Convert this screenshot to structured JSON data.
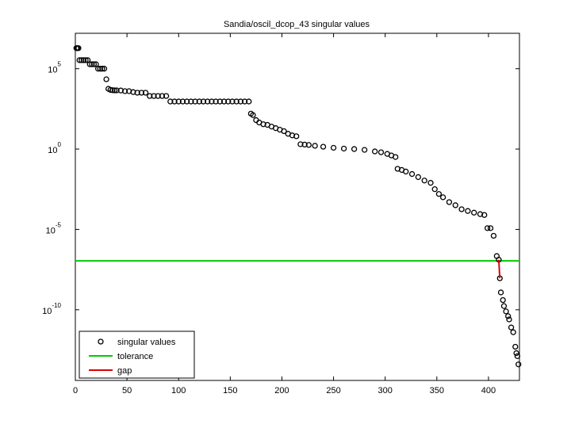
{
  "chart_data": {
    "type": "scatter",
    "title": "Sandia/oscil_dcop_43 singular values",
    "xlim": [
      0,
      430
    ],
    "xticks": [
      0,
      50,
      100,
      150,
      200,
      250,
      300,
      350,
      400
    ],
    "ylim": [
      4e-15,
      16000000.0
    ],
    "log_y": true,
    "yticks": [
      {
        "value": 1e-10,
        "label": "10^-10"
      },
      {
        "value": 1e-05,
        "label": "10^-5"
      },
      {
        "value": 1,
        "label": "10^0"
      },
      {
        "value": 100000.0,
        "label": "10^5"
      }
    ],
    "legend": "lower left",
    "series": [
      {
        "name": "singular values",
        "color": "#000000",
        "marker": "circle",
        "x": [
          1,
          2,
          3,
          4,
          6,
          8,
          10,
          12,
          14,
          16,
          18,
          20,
          22,
          24,
          26,
          28,
          30,
          32,
          34,
          36,
          38,
          40,
          44,
          48,
          52,
          56,
          60,
          64,
          68,
          72,
          76,
          80,
          84,
          88,
          92,
          96,
          100,
          104,
          108,
          112,
          116,
          120,
          124,
          128,
          132,
          136,
          140,
          144,
          148,
          152,
          156,
          160,
          164,
          168,
          170,
          172,
          175,
          178,
          182,
          186,
          190,
          194,
          198,
          202,
          206,
          210,
          214,
          218,
          222,
          226,
          232,
          240,
          250,
          260,
          270,
          280,
          290,
          296,
          302,
          306,
          310,
          312,
          316,
          320,
          326,
          332,
          338,
          344,
          348,
          352,
          356,
          362,
          368,
          374,
          380,
          386,
          392,
          396,
          399,
          402,
          405,
          408,
          410,
          411,
          412,
          414,
          415,
          417,
          419,
          420,
          422,
          424,
          426,
          427,
          428,
          429
        ],
        "values": [
          1900000.0,
          1900000.0,
          1900000.0,
          340000.0,
          340000.0,
          340000.0,
          340000.0,
          340000.0,
          190000.0,
          190000.0,
          190000.0,
          190000.0,
          100000.0,
          100000.0,
          100000.0,
          100000.0,
          22000.0,
          5600.0,
          4800.0,
          4600.0,
          4500.0,
          4500.0,
          4400.0,
          4000.0,
          4000.0,
          3500.0,
          3200.0,
          3200.0,
          3200.0,
          2000.0,
          2000.0,
          2000.0,
          2000.0,
          2000.0,
          910,
          910,
          910,
          910,
          910,
          910,
          910,
          910,
          910,
          910,
          910,
          910,
          910,
          910,
          910,
          910,
          910,
          910,
          910,
          910,
          160,
          130,
          63,
          45,
          35,
          32,
          25,
          20,
          16,
          13,
          8.9,
          7.1,
          6.3,
          2,
          1.9,
          1.8,
          1.6,
          1.4,
          1.2,
          1.07,
          1,
          0.89,
          0.71,
          0.63,
          0.5,
          0.4,
          0.32,
          0.059,
          0.05,
          0.04,
          0.028,
          0.018,
          0.011,
          0.0079,
          0.0032,
          0.0016,
          0.001,
          0.0005,
          0.00032,
          0.00018,
          0.00014,
          0.00011,
          8.9e-05,
          7.9e-05,
          1.2e-05,
          1.2e-05,
          4e-06,
          2.2e-07,
          1.3e-07,
          9.1e-09,
          1.2e-09,
          4e-10,
          1.7e-10,
          7.9e-11,
          4e-11,
          2.5e-11,
          7.9e-12,
          4e-12,
          5e-13,
          2e-13,
          1.3e-13,
          4e-14
        ]
      },
      {
        "name": "tolerance",
        "color": "#00cc00",
        "marker": "hline",
        "values": [
          1.1e-07
        ]
      },
      {
        "name": "gap",
        "color": "#dd0000",
        "marker": "line",
        "x": [
          410,
          411
        ],
        "values": [
          1.3e-07,
          9.1e-09
        ]
      }
    ]
  }
}
